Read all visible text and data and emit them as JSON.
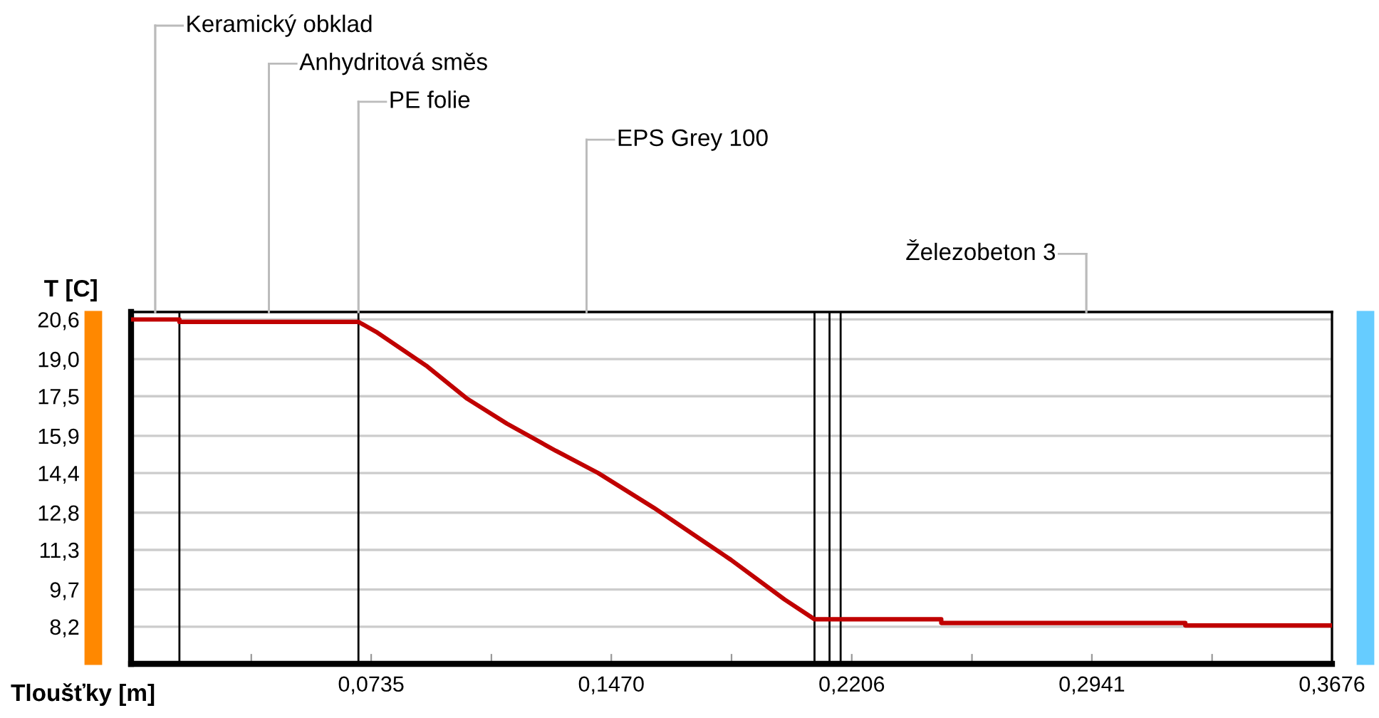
{
  "chart_data": {
    "type": "line",
    "xlabel": "Tloušťky [m]",
    "ylabel": "T [C]",
    "series": [
      {
        "color": "#c00000",
        "x": [
          0,
          0.0148,
          0.0148,
          0.0696,
          0.075,
          0.0907,
          0.1029,
          0.115,
          0.13,
          0.143,
          0.16,
          0.1836,
          0.2,
          0.2092,
          0.248,
          0.248,
          0.3227,
          0.3227,
          0.3676
        ],
        "values": [
          20.6,
          20.6,
          20.5,
          20.5,
          20.1,
          18.7,
          17.4,
          16.4,
          15.3,
          14.4,
          13.0,
          10.9,
          9.3,
          8.5,
          8.5,
          8.35,
          8.35,
          8.25,
          8.25
        ]
      }
    ],
    "ref_lines": [
      {
        "axis": "x",
        "value": 0.0148,
        "color": "#000000"
      },
      {
        "axis": "x",
        "value": 0.0696,
        "color": "#000000"
      },
      {
        "axis": "x",
        "value": 0.2092,
        "color": "#000000"
      },
      {
        "axis": "x",
        "value": 0.2138,
        "color": "#000000"
      },
      {
        "axis": "x",
        "value": 0.2172,
        "color": "#000000"
      }
    ],
    "annotations": [
      "Keramický obklad",
      "Anhydritová směs",
      "PE folie",
      "EPS Grey 100",
      "Železobeton 3"
    ],
    "xlim": [
      0,
      0.3676
    ],
    "xticks": [
      {
        "value": 0.0368,
        "label": null
      },
      {
        "value": 0.0735,
        "label": "0,0735"
      },
      {
        "value": 0.1103,
        "label": null
      },
      {
        "value": 0.147,
        "label": "0,1470"
      },
      {
        "value": 0.1838,
        "label": null
      },
      {
        "value": 0.2206,
        "label": "0,2206"
      },
      {
        "value": 0.2574,
        "label": null
      },
      {
        "value": 0.2941,
        "label": "0,2941"
      },
      {
        "value": 0.3309,
        "label": null
      },
      {
        "value": 0.3676,
        "label": "0,3676"
      }
    ],
    "ylim": [
      6.7,
      20.9
    ],
    "yticks": [
      {
        "value": 8.2,
        "label": "8,2"
      },
      {
        "value": 9.7,
        "label": "9,7"
      },
      {
        "value": 11.3,
        "label": "11,3"
      },
      {
        "value": 12.8,
        "label": "12,8"
      },
      {
        "value": 14.4,
        "label": "14,4"
      },
      {
        "value": 15.9,
        "label": "15,9"
      },
      {
        "value": 17.5,
        "label": "17,5"
      },
      {
        "value": 19.0,
        "label": "19,0"
      },
      {
        "value": 20.6,
        "label": "20,6"
      }
    ],
    "grid": "y",
    "marker": "none",
    "line_style": "solid"
  }
}
